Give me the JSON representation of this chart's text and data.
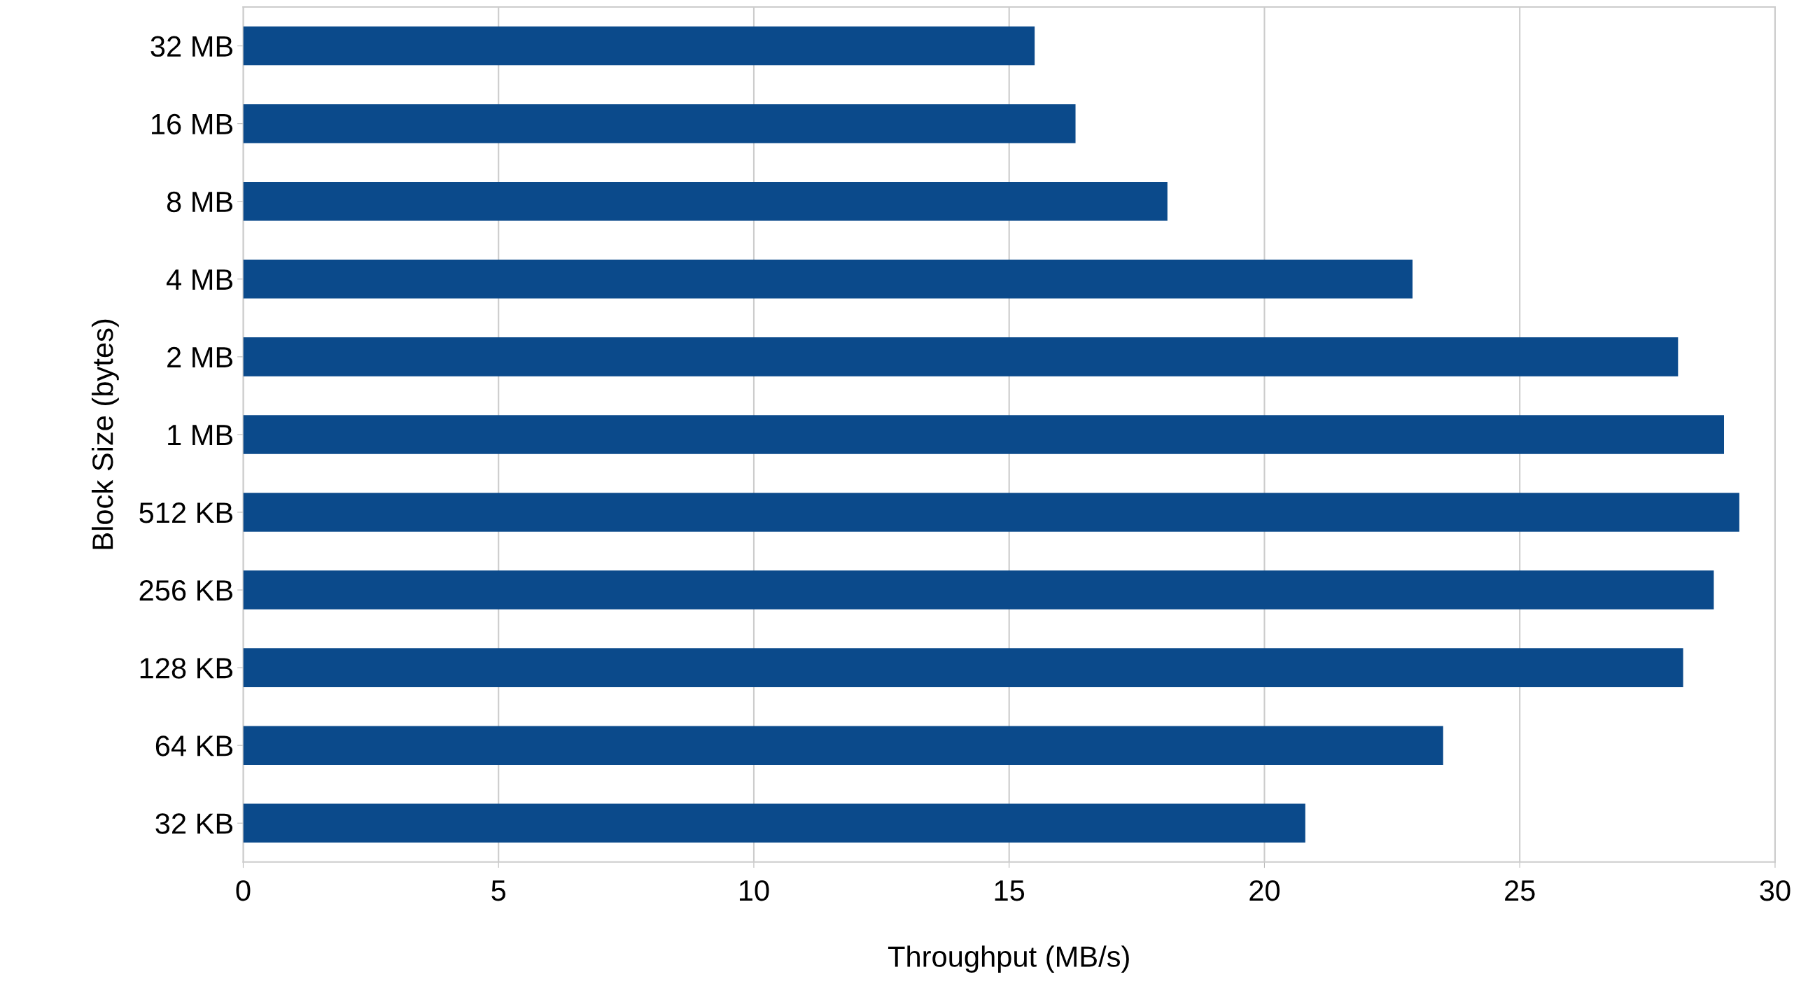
{
  "chart_data": {
    "type": "bar",
    "orientation": "horizontal",
    "xlabel": "Throughput (MB/s)",
    "ylabel": "Block Size (bytes)",
    "categories": [
      "32 MB",
      "16 MB",
      "8 MB",
      "4 MB",
      "2 MB",
      "1 MB",
      "512 KB",
      "256 KB",
      "128 KB",
      "64 KB",
      "32 KB"
    ],
    "values": [
      15.5,
      16.3,
      18.1,
      22.9,
      28.1,
      29.0,
      29.3,
      28.8,
      28.2,
      23.5,
      20.8
    ],
    "color": "#0b4a8b",
    "xlim": [
      0,
      30
    ],
    "xticks": [
      0,
      5,
      10,
      15,
      20,
      25,
      30
    ],
    "grid": "x",
    "legend": false
  }
}
